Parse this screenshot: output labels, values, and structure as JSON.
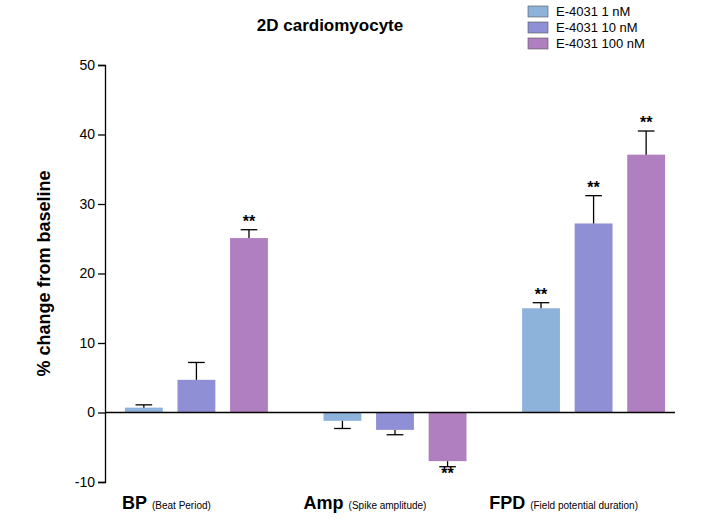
{
  "chart_data": {
    "type": "bar",
    "title": "2D cardiomyocyte",
    "y_label": "% change from baseline",
    "categories": [
      "BP",
      "Amp",
      "FPD"
    ],
    "category_notes": [
      "(Beat Period)",
      "(Spike amplitude)",
      "(Field potential duration)"
    ],
    "series": [
      {
        "name": "E-4031 1 nM",
        "color": "#8DB3DA",
        "values": [
          0.7,
          -1.2,
          15.0
        ],
        "errors": [
          0.4,
          1.1,
          0.8
        ],
        "significance": [
          null,
          null,
          "**"
        ]
      },
      {
        "name": "E-4031 10 nM",
        "color": "#8F8FD6",
        "values": [
          4.7,
          -2.5,
          27.2
        ],
        "errors": [
          2.5,
          0.7,
          4.0
        ],
        "significance": [
          null,
          null,
          "**"
        ]
      },
      {
        "name": "E-4031 100 nM",
        "color": "#B07FC0",
        "values": [
          25.1,
          -7.0,
          37.1
        ],
        "errors": [
          1.2,
          0.8,
          3.4
        ],
        "significance": [
          "**",
          "**",
          "**"
        ]
      }
    ],
    "ylim": [
      -10,
      50
    ],
    "yticks": [
      -10,
      0,
      10,
      20,
      30,
      40,
      50
    ],
    "legend": "top-right"
  }
}
